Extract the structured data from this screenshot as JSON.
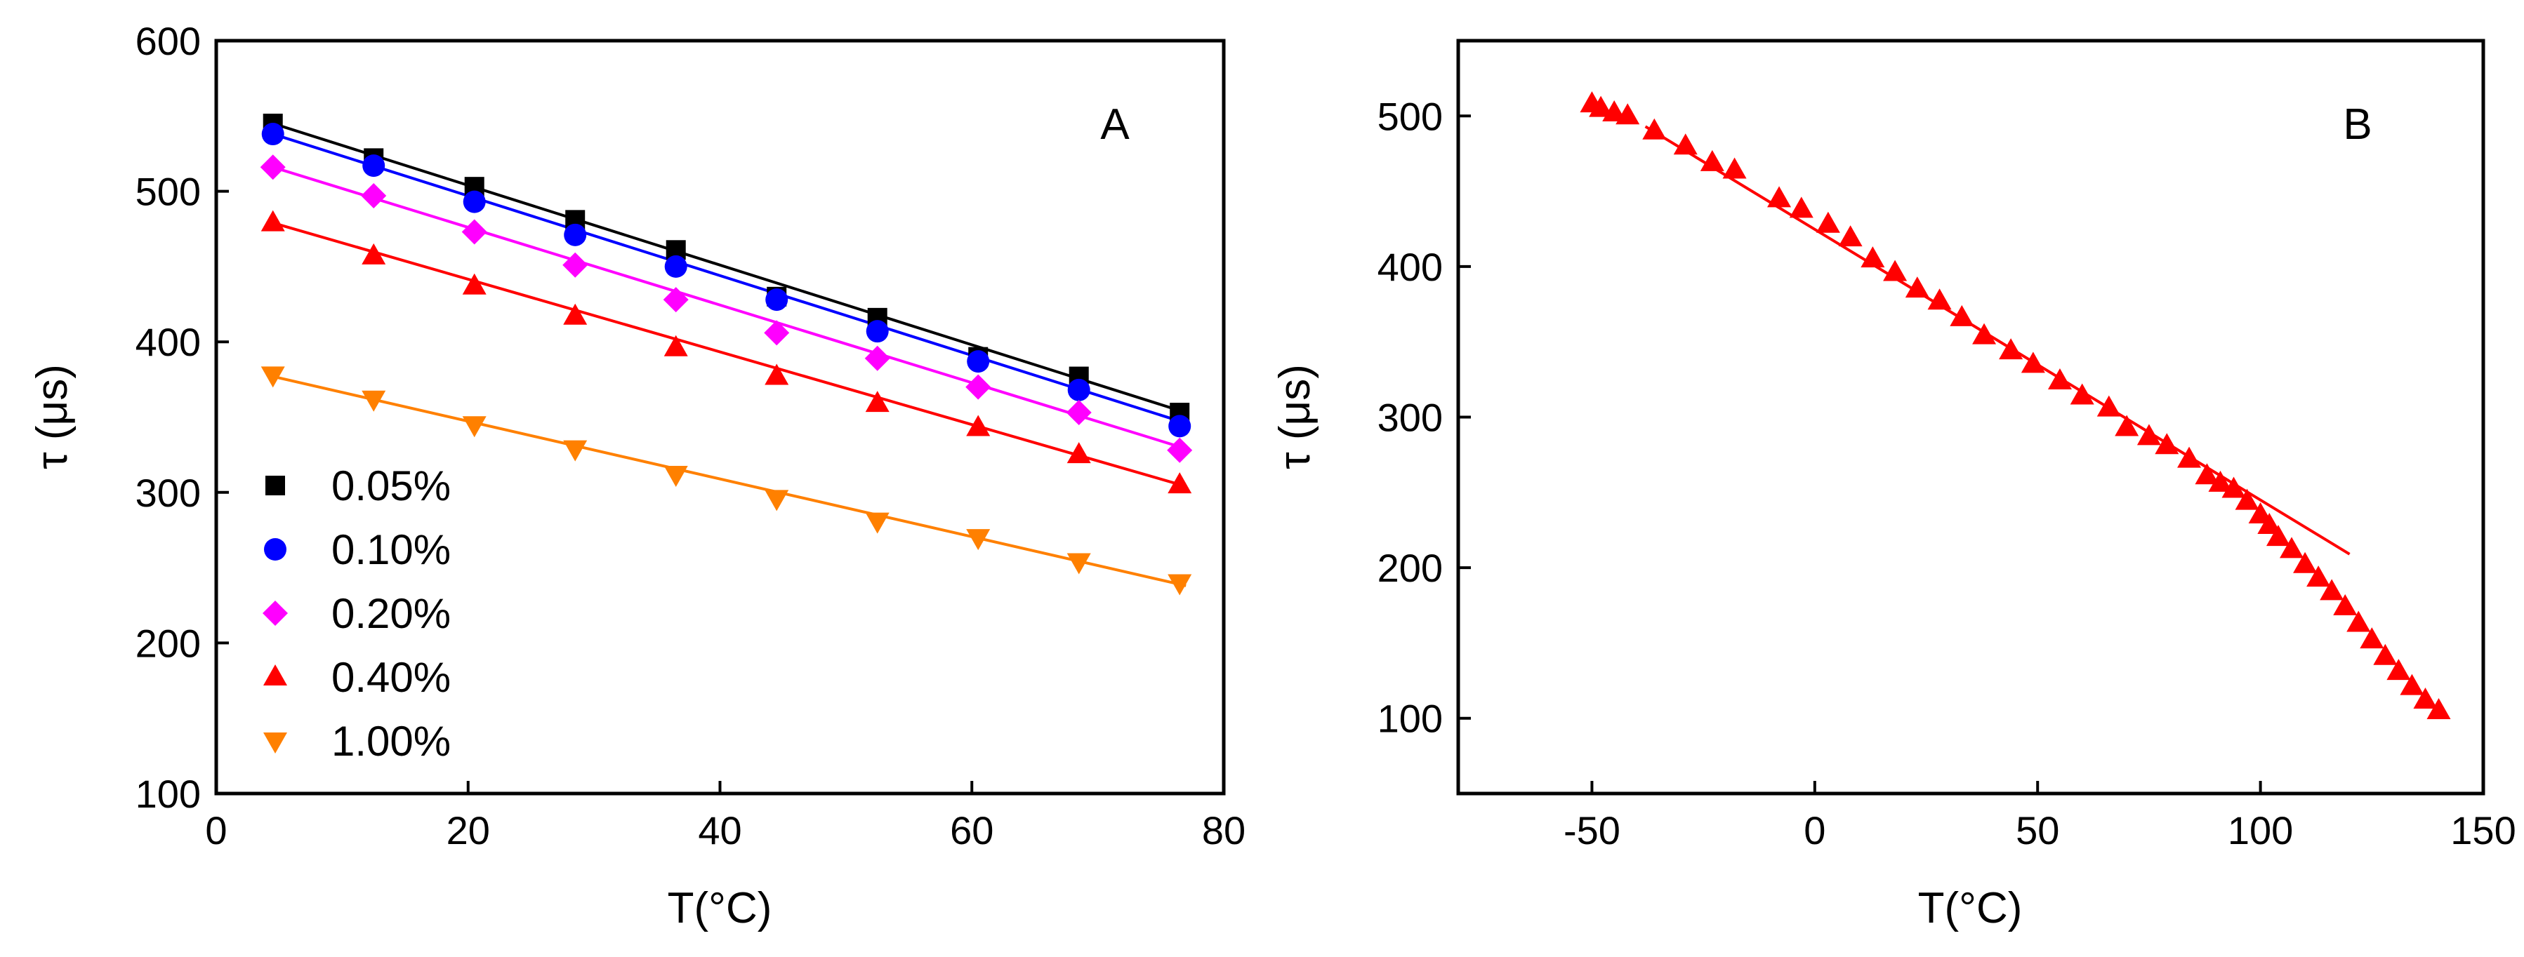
{
  "chart_data": [
    {
      "panel": "A",
      "type": "scatter",
      "panel_label": "A",
      "xlabel": "T(°C)",
      "ylabel": "τ (μs)",
      "xlim": [
        0,
        80
      ],
      "ylim": [
        100,
        600
      ],
      "xticks": [
        0,
        20,
        40,
        60,
        80
      ],
      "yticks": [
        100,
        200,
        300,
        400,
        500,
        600
      ],
      "grid": false,
      "legend_position": "center-left",
      "x": [
        4.5,
        12.5,
        20.5,
        28.5,
        36.5,
        44.5,
        52.5,
        60.5,
        68.5,
        76.5
      ],
      "series": [
        {
          "name": "0.05%",
          "color": "#000000",
          "marker": "square",
          "values": [
            545,
            522,
            503,
            481,
            461,
            430,
            416,
            390,
            377,
            353
          ],
          "fit": [
            [
              4.5,
              545
            ],
            [
              77,
              353
            ]
          ]
        },
        {
          "name": "0.10%",
          "color": "#0000ff",
          "marker": "circle",
          "values": [
            538,
            517,
            493,
            471,
            450,
            428,
            407,
            387,
            368,
            344
          ],
          "fit": [
            [
              4.5,
              538
            ],
            [
              77,
              346
            ]
          ]
        },
        {
          "name": "0.20%",
          "color": "#ff00ff",
          "marker": "diamond",
          "values": [
            516,
            497,
            473,
            451,
            428,
            406,
            389,
            370,
            353,
            328
          ],
          "fit": [
            [
              4.5,
              516
            ],
            [
              77,
              329
            ]
          ]
        },
        {
          "name": "0.40%",
          "color": "#ff0000",
          "marker": "triangle-up",
          "values": [
            479,
            457,
            437,
            417,
            396,
            377,
            359,
            343,
            325,
            305
          ],
          "fit": [
            [
              4.5,
              479
            ],
            [
              77,
              304
            ]
          ]
        },
        {
          "name": "1.00%",
          "color": "#ff8000",
          "marker": "triangle-down",
          "values": [
            378,
            362,
            345,
            329,
            312,
            296,
            281,
            270,
            254,
            240
          ],
          "fit": [
            [
              4.5,
              377
            ],
            [
              77,
              238
            ]
          ]
        }
      ]
    },
    {
      "panel": "B",
      "type": "scatter",
      "panel_label": "B",
      "xlabel": "T(°C)",
      "ylabel": "τ (μs)",
      "xlim": [
        -80,
        150
      ],
      "ylim": [
        50,
        550
      ],
      "xticks": [
        -50,
        0,
        50,
        100,
        150
      ],
      "yticks": [
        100,
        200,
        300,
        400,
        500
      ],
      "grid": false,
      "series": [
        {
          "name": "τ",
          "color": "#ff0000",
          "marker": "triangle-up",
          "x": [
            -50,
            -48,
            -45,
            -42,
            -36,
            -29,
            -23,
            -18,
            -8,
            -3,
            3,
            8,
            13,
            18,
            23,
            28,
            33,
            38,
            44,
            49,
            55,
            60,
            66,
            70,
            75,
            79,
            84,
            88,
            91,
            94,
            97,
            100,
            102,
            104,
            107,
            110,
            113,
            116,
            119,
            122,
            125,
            128,
            131,
            134,
            137,
            140
          ],
          "values": [
            508,
            505,
            502,
            500,
            490,
            480,
            469,
            464,
            445,
            438,
            428,
            419,
            405,
            396,
            385,
            377,
            366,
            354,
            344,
            335,
            324,
            314,
            306,
            293,
            287,
            281,
            272,
            261,
            256,
            252,
            244,
            235,
            228,
            220,
            212,
            202,
            193,
            184,
            174,
            163,
            152,
            141,
            131,
            121,
            112,
            105
          ],
          "fit": [
            [
              -38,
              493
            ],
            [
              120,
              209
            ]
          ]
        }
      ]
    }
  ]
}
